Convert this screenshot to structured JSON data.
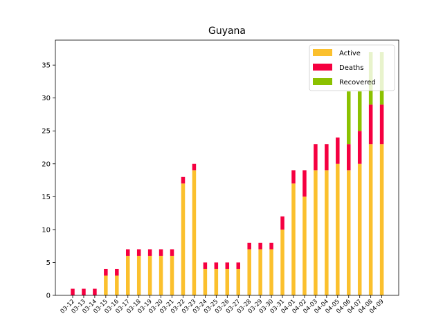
{
  "chart_data": {
    "type": "bar",
    "stacked": true,
    "title": "Guyana",
    "xlabel": "",
    "ylabel": "",
    "ylim": [
      0,
      38.8
    ],
    "yticks": [
      0,
      5,
      10,
      15,
      20,
      25,
      30,
      35
    ],
    "grid": false,
    "legend_position": "top-right",
    "categories": [
      "03-12",
      "03-13",
      "03-14",
      "03-15",
      "03-16",
      "03-17",
      "03-18",
      "03-19",
      "03-20",
      "03-21",
      "03-22",
      "03-23",
      "03-24",
      "03-25",
      "03-26",
      "03-27",
      "03-28",
      "03-29",
      "03-30",
      "03-31",
      "04-01",
      "04-02",
      "04-03",
      "04-04",
      "04-05",
      "04-06",
      "04-07",
      "04-08",
      "04-09"
    ],
    "series": [
      {
        "name": "Active",
        "color": "#fbc02d",
        "values": [
          0,
          0,
          0,
          3,
          3,
          6,
          6,
          6,
          6,
          6,
          17,
          19,
          4,
          4,
          4,
          4,
          7,
          7,
          7,
          10,
          17,
          15,
          19,
          19,
          20,
          19,
          20,
          23,
          23
        ]
      },
      {
        "name": "Deaths",
        "color": "#f50040",
        "values": [
          1,
          1,
          1,
          1,
          1,
          1,
          1,
          1,
          1,
          1,
          1,
          1,
          1,
          1,
          1,
          1,
          1,
          1,
          1,
          2,
          2,
          4,
          4,
          4,
          4,
          4,
          5,
          6,
          6
        ]
      },
      {
        "name": "Recovered",
        "color": "#8bc100",
        "values": [
          0,
          0,
          0,
          0,
          0,
          0,
          0,
          0,
          0,
          0,
          0,
          0,
          0,
          0,
          0,
          0,
          0,
          0,
          0,
          0,
          0,
          0,
          0,
          0,
          0,
          8,
          6,
          8,
          8
        ]
      }
    ]
  }
}
